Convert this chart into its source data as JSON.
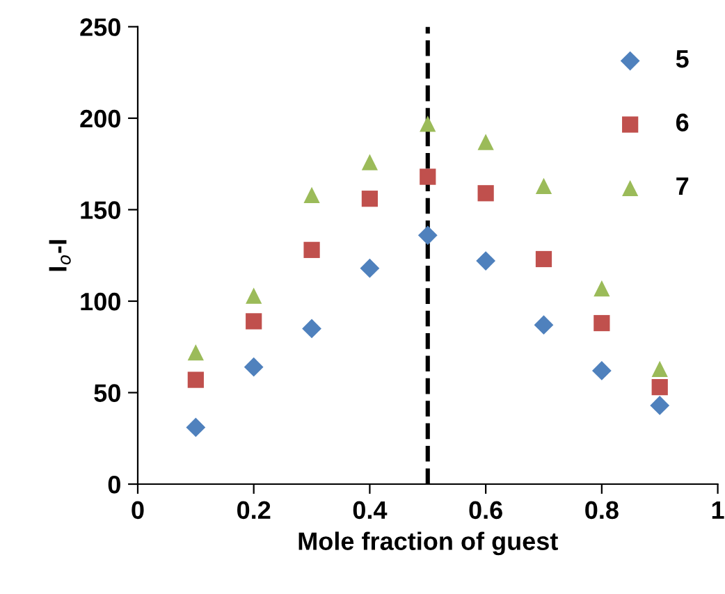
{
  "chart_data": {
    "type": "scatter",
    "xlabel": "Mole fraction of guest",
    "ylabel": "I$_{o}$-I",
    "x": [
      0.1,
      0.2,
      0.3,
      0.4,
      0.5,
      0.6,
      0.7,
      0.8,
      0.9
    ],
    "series": [
      {
        "name": "5",
        "color": "#4f81bd",
        "marker": "diamond",
        "values": [
          31,
          64,
          85,
          118,
          136,
          122,
          87,
          62,
          43
        ]
      },
      {
        "name": "6",
        "color": "#c0504d",
        "marker": "square",
        "values": [
          57,
          89,
          128,
          156,
          168,
          159,
          123,
          88,
          53
        ]
      },
      {
        "name": "7",
        "color": "#9bbb59",
        "marker": "triangle",
        "values": [
          72,
          103,
          158,
          176,
          197,
          187,
          163,
          107,
          63
        ]
      }
    ],
    "xlim": [
      0,
      1
    ],
    "xticks": [
      0,
      0.2,
      0.4,
      0.6,
      0.8,
      1
    ],
    "ylim": [
      0,
      250
    ],
    "yticks": [
      0,
      50,
      100,
      150,
      200,
      250
    ],
    "ref_lines": [
      {
        "axis": "x",
        "value": 0.5,
        "color": "#000000",
        "line_style": "dashed"
      }
    ],
    "grid": false,
    "legend": "top right"
  }
}
